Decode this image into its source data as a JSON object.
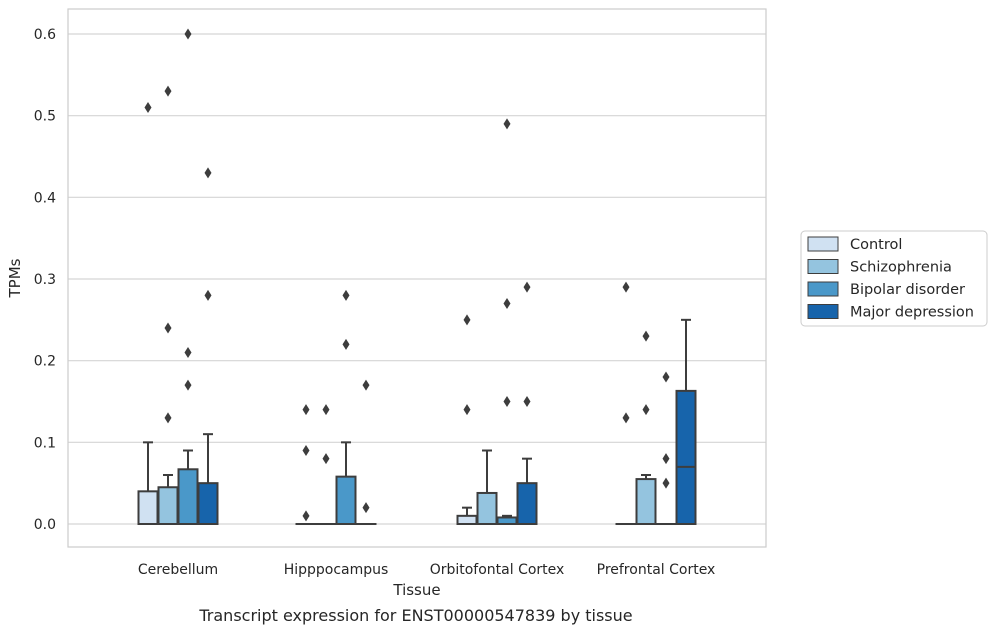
{
  "chart_data": {
    "type": "box",
    "xlabel": "Tissue",
    "ylabel": "TPMs",
    "caption": "Transcript expression for ENST00000547839 by tissue",
    "ylim": [
      -0.03,
      0.63
    ],
    "yticks": [
      0.0,
      0.1,
      0.2,
      0.3,
      0.4,
      0.5,
      0.6
    ],
    "ytick_labels": [
      "0.0",
      "0.1",
      "0.2",
      "0.3",
      "0.4",
      "0.5",
      "0.6"
    ],
    "grid": "horizontal",
    "legend_position": "right",
    "categories": [
      "Cerebellum",
      "Hipppocampus",
      "Orbitofontal Cortex",
      "Prefrontal Cortex"
    ],
    "series": [
      {
        "name": "Control",
        "color": "#d0e1f2",
        "boxes": [
          {
            "q1": 0.0,
            "median": 0.0,
            "q3": 0.04,
            "whisker_low": 0.0,
            "whisker_high": 0.1,
            "outliers": [
              0.51
            ]
          },
          {
            "q1": 0.0,
            "median": 0.0,
            "q3": 0.0,
            "whisker_low": 0.0,
            "whisker_high": 0.0,
            "outliers": [
              0.01,
              0.09,
              0.14
            ]
          },
          {
            "q1": 0.0,
            "median": 0.0,
            "q3": 0.01,
            "whisker_low": 0.0,
            "whisker_high": 0.02,
            "outliers": [
              0.14,
              0.25
            ]
          },
          {
            "q1": 0.0,
            "median": 0.0,
            "q3": 0.0,
            "whisker_low": 0.0,
            "whisker_high": 0.0,
            "outliers": [
              0.13,
              0.29
            ]
          }
        ]
      },
      {
        "name": "Schizophrenia",
        "color": "#94c4df",
        "boxes": [
          {
            "q1": 0.0,
            "median": 0.0,
            "q3": 0.045,
            "whisker_low": 0.0,
            "whisker_high": 0.06,
            "outliers": [
              0.13,
              0.24,
              0.53
            ]
          },
          {
            "q1": 0.0,
            "median": 0.0,
            "q3": 0.0,
            "whisker_low": 0.0,
            "whisker_high": 0.0,
            "outliers": [
              0.08,
              0.14
            ]
          },
          {
            "q1": 0.0,
            "median": 0.0,
            "q3": 0.038,
            "whisker_low": 0.0,
            "whisker_high": 0.09,
            "outliers": []
          },
          {
            "q1": 0.0,
            "median": 0.0,
            "q3": 0.055,
            "whisker_low": 0.0,
            "whisker_high": 0.06,
            "outliers": [
              0.14,
              0.23
            ]
          }
        ]
      },
      {
        "name": "Bipolar disorder",
        "color": "#4a98c9",
        "boxes": [
          {
            "q1": 0.0,
            "median": 0.0,
            "q3": 0.067,
            "whisker_low": 0.0,
            "whisker_high": 0.09,
            "outliers": [
              0.17,
              0.21,
              0.6
            ]
          },
          {
            "q1": 0.0,
            "median": 0.0,
            "q3": 0.058,
            "whisker_low": 0.0,
            "whisker_high": 0.1,
            "outliers": [
              0.22,
              0.28
            ]
          },
          {
            "q1": 0.0,
            "median": 0.0,
            "q3": 0.008,
            "whisker_low": 0.0,
            "whisker_high": 0.01,
            "outliers": [
              0.15,
              0.27,
              0.49
            ]
          },
          {
            "q1": 0.0,
            "median": 0.0,
            "q3": 0.0,
            "whisker_low": 0.0,
            "whisker_high": 0.0,
            "outliers": [
              0.05,
              0.08,
              0.18
            ]
          }
        ]
      },
      {
        "name": "Major depression",
        "color": "#1764ab",
        "boxes": [
          {
            "q1": 0.0,
            "median": 0.0,
            "q3": 0.05,
            "whisker_low": 0.0,
            "whisker_high": 0.11,
            "outliers": [
              0.28,
              0.43
            ]
          },
          {
            "q1": 0.0,
            "median": 0.0,
            "q3": 0.0,
            "whisker_low": 0.0,
            "whisker_high": 0.0,
            "outliers": [
              0.02,
              0.17
            ]
          },
          {
            "q1": 0.0,
            "median": 0.0,
            "q3": 0.05,
            "whisker_low": 0.0,
            "whisker_high": 0.08,
            "outliers": [
              0.15,
              0.29
            ]
          },
          {
            "q1": 0.0,
            "median": 0.07,
            "q3": 0.163,
            "whisker_low": 0.0,
            "whisker_high": 0.25,
            "outliers": []
          }
        ]
      }
    ]
  }
}
